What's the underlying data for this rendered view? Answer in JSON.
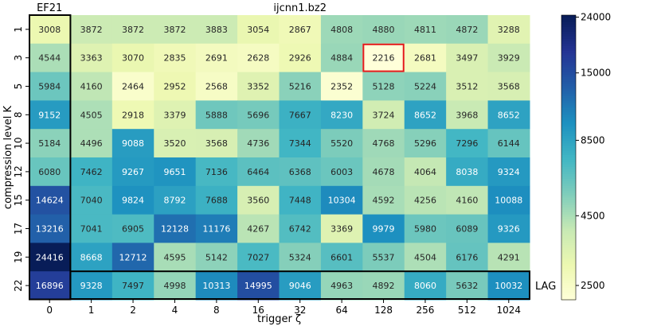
{
  "chart_data": {
    "type": "heatmap",
    "title": "ijcnn1.bz2",
    "xlabel": "trigger ζ",
    "ylabel": "compression level K",
    "x_categories": [
      "0",
      "1",
      "2",
      "4",
      "8",
      "16",
      "32",
      "64",
      "128",
      "256",
      "512",
      "1024"
    ],
    "y_categories": [
      "1",
      "3",
      "5",
      "8",
      "10",
      "12",
      "15",
      "17",
      "19",
      "22"
    ],
    "values": [
      [
        3008,
        3872,
        3872,
        3872,
        3883,
        3054,
        2867,
        4808,
        4880,
        4811,
        4872,
        3288
      ],
      [
        4544,
        3363,
        3070,
        2835,
        2691,
        2628,
        2926,
        4884,
        2216,
        2681,
        3497,
        3929
      ],
      [
        5984,
        4160,
        2464,
        2952,
        2568,
        3352,
        5216,
        2352,
        5128,
        5224,
        3512,
        3568
      ],
      [
        9152,
        4505,
        2918,
        3379,
        5888,
        5696,
        7667,
        8230,
        3724,
        8652,
        3968,
        8652
      ],
      [
        5184,
        4496,
        9088,
        3520,
        3568,
        4736,
        7344,
        5520,
        4768,
        5296,
        7296,
        6144
      ],
      [
        6080,
        7462,
        9267,
        9651,
        7136,
        6464,
        6368,
        6003,
        4678,
        4064,
        8038,
        9324
      ],
      [
        14624,
        7040,
        9824,
        8792,
        7688,
        3560,
        7448,
        10304,
        4592,
        4256,
        4160,
        10088
      ],
      [
        13216,
        7041,
        6905,
        12128,
        11176,
        4267,
        6742,
        3369,
        9979,
        5980,
        6089,
        9326
      ],
      [
        24416,
        8668,
        12712,
        4595,
        5142,
        7027,
        5324,
        6601,
        5537,
        4504,
        6176,
        4291
      ],
      [
        16896,
        9328,
        7497,
        4998,
        10313,
        14995,
        9046,
        4963,
        4892,
        8060,
        5632,
        10032
      ]
    ],
    "colorbar": {
      "scale": "log",
      "min": 2216,
      "max": 24416,
      "ticks": [
        2500,
        4500,
        8500,
        15000,
        24000
      ],
      "tick_labels": [
        "2500",
        "4500",
        "8500",
        "15000",
        "24000"
      ],
      "colormap": "YlGnBu"
    },
    "annotations": {
      "column_box_label": "EF21",
      "row_box_label": "LAG",
      "highlight": {
        "row": 1,
        "col": 8,
        "color": "#e41a1c"
      }
    }
  }
}
